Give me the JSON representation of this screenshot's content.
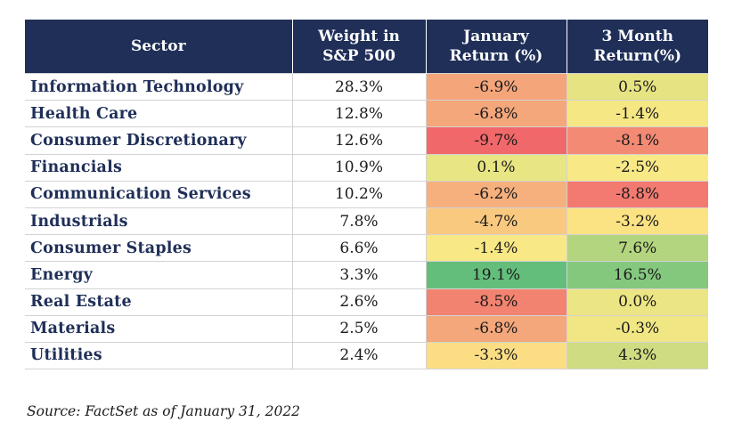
{
  "table": {
    "headers": {
      "sector": "Sector",
      "weight": "Weight in\nS&P 500",
      "january": "January\nReturn (%)",
      "three_month": "3 Month\nReturn(%)"
    },
    "rows": [
      {
        "sector": "Information Technology",
        "weight": "28.3%",
        "january": "-6.9%",
        "three_month": "0.5%",
        "january_color": "#f4a57a",
        "three_month_color": "#e6e382"
      },
      {
        "sector": "Health Care",
        "weight": "12.8%",
        "january": "-6.8%",
        "three_month": "-1.4%",
        "january_color": "#f4a77b",
        "three_month_color": "#f6e785"
      },
      {
        "sector": "Consumer Discretionary",
        "weight": "12.6%",
        "january": "-9.7%",
        "three_month": "-8.1%",
        "january_color": "#f1686a",
        "three_month_color": "#f38a74"
      },
      {
        "sector": "Financials",
        "weight": "10.9%",
        "january": "0.1%",
        "three_month": "-2.5%",
        "january_color": "#e8e583",
        "three_month_color": "#f9e986"
      },
      {
        "sector": "Communication Services",
        "weight": "10.2%",
        "january": "-6.2%",
        "three_month": "-8.8%",
        "january_color": "#f5b07d",
        "three_month_color": "#f27a70"
      },
      {
        "sector": "Industrials",
        "weight": "7.8%",
        "january": "-4.7%",
        "three_month": "-3.2%",
        "january_color": "#f9c980",
        "three_month_color": "#fbe283"
      },
      {
        "sector": "Consumer Staples",
        "weight": "6.6%",
        "january": "-1.4%",
        "three_month": "7.6%",
        "january_color": "#f9e886",
        "three_month_color": "#b4d57f"
      },
      {
        "sector": "Energy",
        "weight": "3.3%",
        "january": "19.1%",
        "three_month": "16.5%",
        "january_color": "#64be7b",
        "three_month_color": "#84c87e"
      },
      {
        "sector": "Real Estate",
        "weight": "2.6%",
        "january": "-8.5%",
        "three_month": "0.0%",
        "january_color": "#f28370",
        "three_month_color": "#ece583"
      },
      {
        "sector": "Materials",
        "weight": "2.5%",
        "january": "-6.8%",
        "three_month": "-0.3%",
        "january_color": "#f4a77b",
        "three_month_color": "#f0e684"
      },
      {
        "sector": "Utilities",
        "weight": "2.4%",
        "january": "-3.3%",
        "three_month": "4.3%",
        "january_color": "#fbde84",
        "three_month_color": "#cfdc81"
      }
    ]
  },
  "source": "Source: FactSet as of January 31, 2022",
  "colors": {
    "header_bg": "#1f2f58",
    "header_text": "#ffffff",
    "sector_text": "#1f2f58"
  }
}
